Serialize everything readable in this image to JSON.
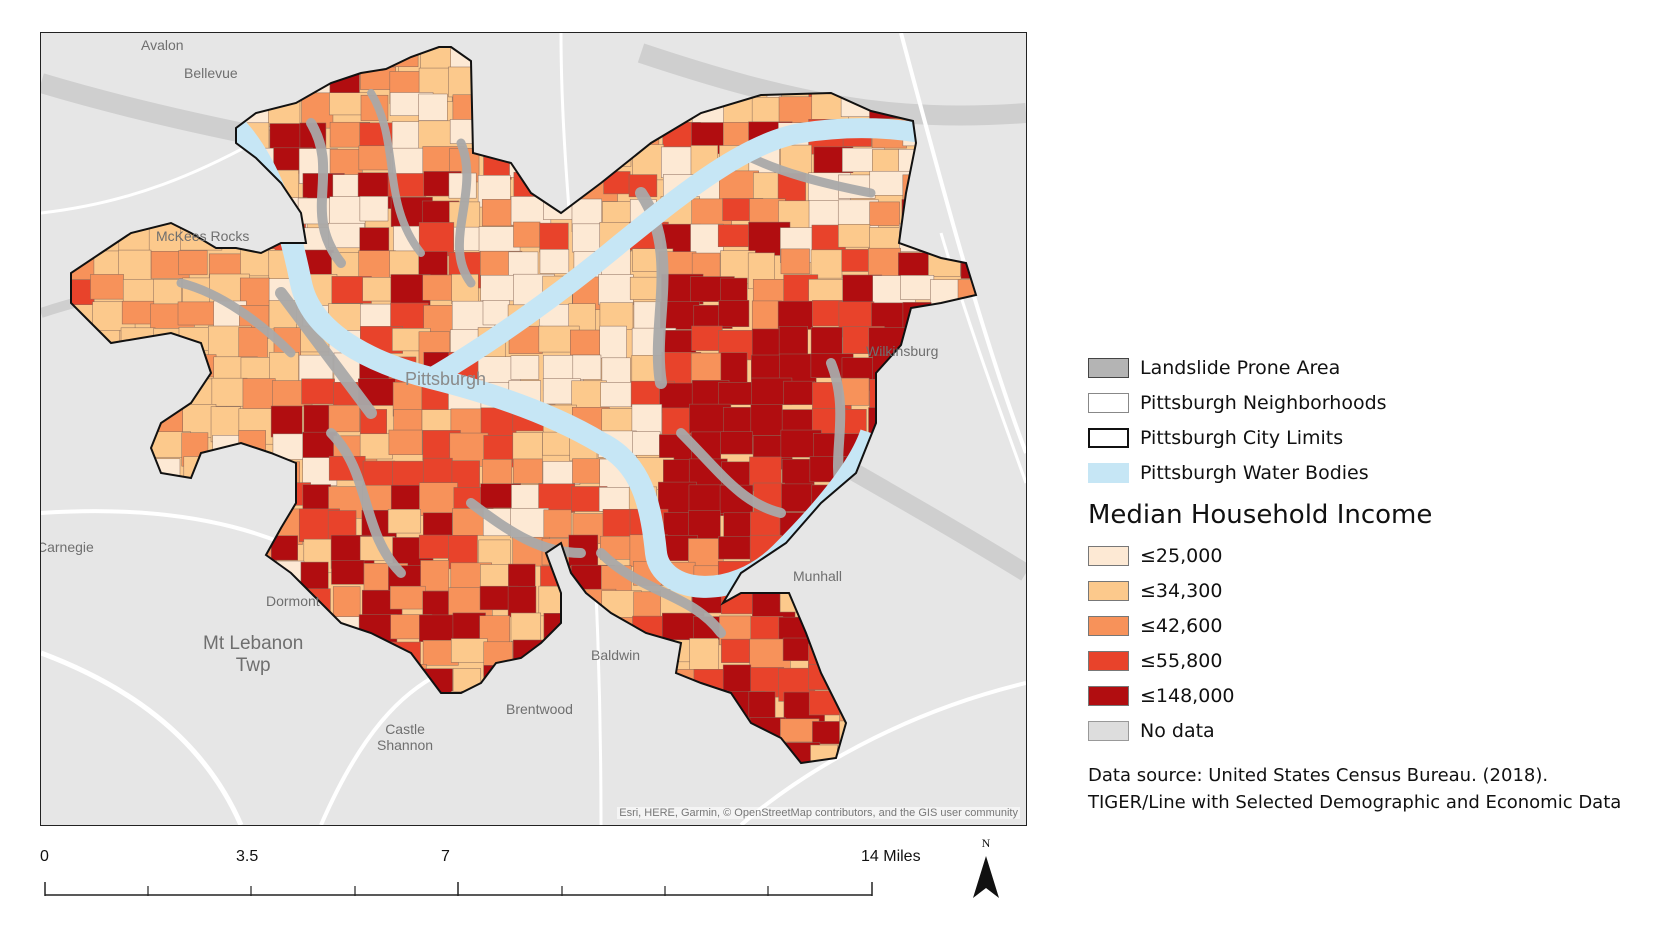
{
  "map": {
    "places": [
      {
        "id": "avalon",
        "label": "Avalon"
      },
      {
        "id": "bellevue",
        "label": "Bellevue"
      },
      {
        "id": "mckees_rocks",
        "label": "McKees Rocks"
      },
      {
        "id": "pittsburgh",
        "label": "Pittsburgh"
      },
      {
        "id": "wilkinsburg",
        "label": "Wilkinsburg"
      },
      {
        "id": "carnegie",
        "label": "Carnegie"
      },
      {
        "id": "dormont",
        "label": "Dormont"
      },
      {
        "id": "mt_lebanon",
        "label": "Mt Lebanon\nTwp"
      },
      {
        "id": "munhall",
        "label": "Munhall"
      },
      {
        "id": "baldwin",
        "label": "Baldwin"
      },
      {
        "id": "brentwood",
        "label": "Brentwood"
      },
      {
        "id": "castle_shannon",
        "label": "Castle\nShannon"
      }
    ],
    "attribution": "Esri, HERE, Garmin, © OpenStreetMap contributors, and the GIS user community",
    "colors": {
      "basemap": "#e6e6e6",
      "road": "#ffffff",
      "major_river": "#cfcfcf",
      "landslide": "#a9a9a9",
      "water": "#c6e6f5",
      "no_data": "#dddddd",
      "income_classes": [
        "#fde9d4",
        "#fcc98c",
        "#f7925a",
        "#e8432b",
        "#b10d10"
      ]
    }
  },
  "legend": {
    "items": [
      {
        "label": "Landslide Prone Area",
        "fill": "#b4b4b4"
      },
      {
        "label": "Pittsburgh Neighborhoods",
        "fill": "#ffffff"
      },
      {
        "label": "Pittsburgh City Limits",
        "fill": "#ffffff"
      },
      {
        "label": "Pittsburgh Water Bodies",
        "fill": "#c6e6f5"
      }
    ],
    "income_title": "Median Household Income",
    "income_items": [
      {
        "label": "≤25,000",
        "fill": "#fde9d4"
      },
      {
        "label": "≤34,300",
        "fill": "#fcc98c"
      },
      {
        "label": "≤42,600",
        "fill": "#f7925a"
      },
      {
        "label": "≤55,800",
        "fill": "#e8432b"
      },
      {
        "label": "≤148,000",
        "fill": "#b10d10"
      },
      {
        "label": "No data",
        "fill": "#dddddd"
      }
    ],
    "source_line1": "Data source: United States Census Bureau. (2018).",
    "source_line2": "TIGER/Line with Selected Demographic and Economic Data"
  },
  "scale_bar": {
    "labels": [
      "0",
      "3.5",
      "7",
      "14 Miles"
    ],
    "max_miles": 14
  },
  "north_arrow": {
    "label": "N"
  }
}
